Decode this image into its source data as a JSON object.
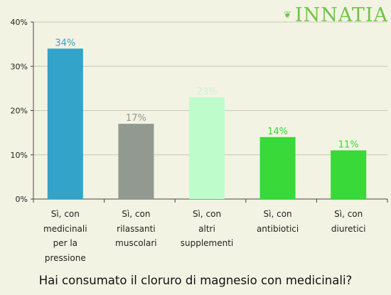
{
  "brand": {
    "logo_text": "INNATIA",
    "logo_color": "#6fc446"
  },
  "chart_data": {
    "type": "bar",
    "title": "Hai consumato il cloruro di magnesio con medicinali?",
    "categories": [
      "Sì, con\nmedicinali\nper la\npressione",
      "Sì, con\nrilassanti\nmuscolari",
      "Sì, con\naltri\nsupplementi",
      "Sì, con\nantibiotici",
      "Sì, con\ndiuretici"
    ],
    "values": [
      34,
      17,
      23,
      14,
      11
    ],
    "value_labels": [
      "34%",
      "17%",
      "23%",
      "14%",
      "11%"
    ],
    "bar_colors": [
      "#33a3c9",
      "#919991",
      "#bffccc",
      "#38d938",
      "#38d938"
    ],
    "ylim": [
      0,
      40
    ],
    "yticks": [
      0,
      10,
      20,
      30,
      40
    ],
    "ytick_labels": [
      "0%",
      "10%",
      "20%",
      "30%",
      "40%"
    ],
    "grid": true,
    "legend": "none"
  }
}
